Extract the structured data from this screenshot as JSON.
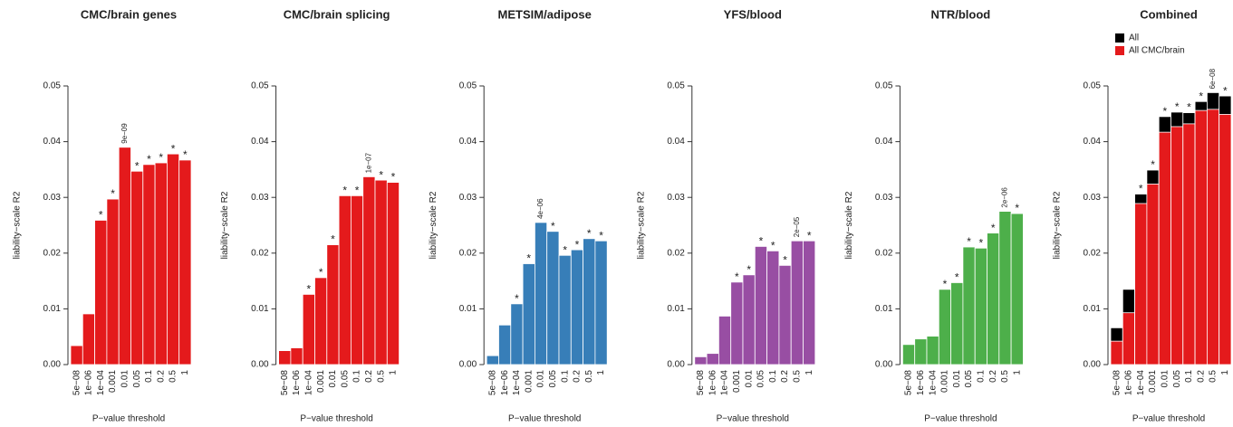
{
  "chart_data": [
    {
      "type": "bar",
      "title": "CMC/brain genes",
      "xlabel": "P−value threshold",
      "ylabel": "liability−scale R2",
      "categories": [
        "5e−08",
        "1e−06",
        "1e−04",
        "0.001",
        "0.01",
        "0.05",
        "0.1",
        "0.2",
        "0.5",
        "1"
      ],
      "values": [
        0.0034,
        0.0091,
        0.0259,
        0.0297,
        0.039,
        0.0347,
        0.0359,
        0.0362,
        0.0378,
        0.0367
      ],
      "markers": [
        null,
        null,
        "*",
        "*",
        "9e−09",
        "*",
        "*",
        "*",
        "*",
        "*"
      ],
      "color": "#e41a1c",
      "ylim": [
        0,
        0.05
      ],
      "yticks": [
        {
          "value": 0,
          "label": "0.00"
        },
        0.01,
        0.02,
        0.03,
        0.04,
        0.05
      ]
    },
    {
      "type": "bar",
      "title": "CMC/brain splicing",
      "xlabel": "P−value threshold",
      "ylabel": "liability−scale R2",
      "categories": [
        "5e−08",
        "1e−06",
        "1e−04",
        "0.001",
        "0.01",
        "0.05",
        "0.1",
        "0.2",
        "0.5",
        "1"
      ],
      "values": [
        0.0025,
        0.003,
        0.0126,
        0.0156,
        0.0215,
        0.0303,
        0.0303,
        0.0337,
        0.0331,
        0.0327
      ],
      "markers": [
        null,
        null,
        "*",
        "*",
        "*",
        "*",
        "*",
        "1e−07",
        "*",
        "*"
      ],
      "color": "#e41a1c",
      "ylim": [
        0,
        0.05
      ],
      "yticks": [
        {
          "value": 0,
          "label": "0.00"
        },
        0.01,
        0.02,
        0.03,
        0.04,
        0.05
      ]
    },
    {
      "type": "bar",
      "title": "METSIM/adipose",
      "xlabel": "P−value threshold",
      "ylabel": "liability−scale R2",
      "categories": [
        "5e−08",
        "1e−06",
        "1e−04",
        "0.001",
        "0.01",
        "0.05",
        "0.1",
        "0.2",
        "0.5",
        "1"
      ],
      "values": [
        0.0016,
        0.0071,
        0.0109,
        0.0181,
        0.0255,
        0.0239,
        0.0196,
        0.0206,
        0.0226,
        0.0222
      ],
      "markers": [
        null,
        null,
        "*",
        "*",
        "4e−06",
        "*",
        "*",
        "*",
        "*",
        "*"
      ],
      "color": "#377eb8",
      "ylim": [
        0,
        0.05
      ],
      "yticks": [
        {
          "value": 0,
          "label": "0.00"
        },
        0.01,
        0.02,
        0.03,
        0.04,
        0.05
      ]
    },
    {
      "type": "bar",
      "title": "YFS/blood",
      "xlabel": "P−value threshold",
      "ylabel": "liability−scale R2",
      "categories": [
        "5e−08",
        "1e−06",
        "1e−04",
        "0.001",
        "0.01",
        "0.05",
        "0.1",
        "0.2",
        "0.5",
        "1"
      ],
      "values": [
        0.0014,
        0.002,
        0.0087,
        0.0148,
        0.0161,
        0.0212,
        0.0204,
        0.0178,
        0.0222,
        0.0222
      ],
      "markers": [
        null,
        null,
        null,
        "*",
        "*",
        "*",
        "*",
        "*",
        "2e−05",
        "*"
      ],
      "color": "#984ea3",
      "ylim": [
        0,
        0.05
      ],
      "yticks": [
        {
          "value": 0,
          "label": "0.00"
        },
        0.01,
        0.02,
        0.03,
        0.04,
        0.05
      ]
    },
    {
      "type": "bar",
      "title": "NTR/blood",
      "xlabel": "P−value threshold",
      "ylabel": "liability−scale R2",
      "categories": [
        "5e−08",
        "1e−06",
        "1e−04",
        "0.001",
        "0.01",
        "0.05",
        "0.1",
        "0.2",
        "0.5",
        "1"
      ],
      "values": [
        0.0036,
        0.0046,
        0.0051,
        0.0135,
        0.0147,
        0.0211,
        0.0209,
        0.0236,
        0.0275,
        0.0271
      ],
      "markers": [
        null,
        null,
        null,
        "*",
        "*",
        "*",
        "*",
        "*",
        "2e−06",
        "*"
      ],
      "color": "#4daf4a",
      "ylim": [
        0,
        0.05
      ],
      "yticks": [
        {
          "value": 0,
          "label": "0.00"
        },
        0.01,
        0.02,
        0.03,
        0.04,
        0.05
      ]
    },
    {
      "type": "bar",
      "title": "Combined",
      "xlabel": "P−value threshold",
      "ylabel": "liability−scale R2",
      "categories": [
        "5e−08",
        "1e−06",
        "1e−04",
        "0.001",
        "0.01",
        "0.05",
        "0.1",
        "0.2",
        "0.5",
        "1"
      ],
      "series": [
        {
          "name": "All",
          "color": "#000000",
          "values": [
            0.0066,
            0.0135,
            0.0306,
            0.0349,
            0.0445,
            0.0453,
            0.0452,
            0.0472,
            0.0488,
            0.0482
          ]
        },
        {
          "name": "All CMC/brain",
          "color": "#e41a1c",
          "values": [
            0.0042,
            0.0093,
            0.0289,
            0.0324,
            0.0417,
            0.0427,
            0.0432,
            0.0456,
            0.0458,
            0.0449
          ]
        }
      ],
      "markers": [
        null,
        null,
        "*",
        "*",
        "*",
        "*",
        "*",
        "*",
        "6e−08",
        "*"
      ],
      "legend": "top-left",
      "ylim": [
        0,
        0.05
      ],
      "yticks": [
        {
          "value": 0,
          "label": "0.00"
        },
        0.01,
        0.02,
        0.03,
        0.04,
        0.05
      ]
    }
  ]
}
